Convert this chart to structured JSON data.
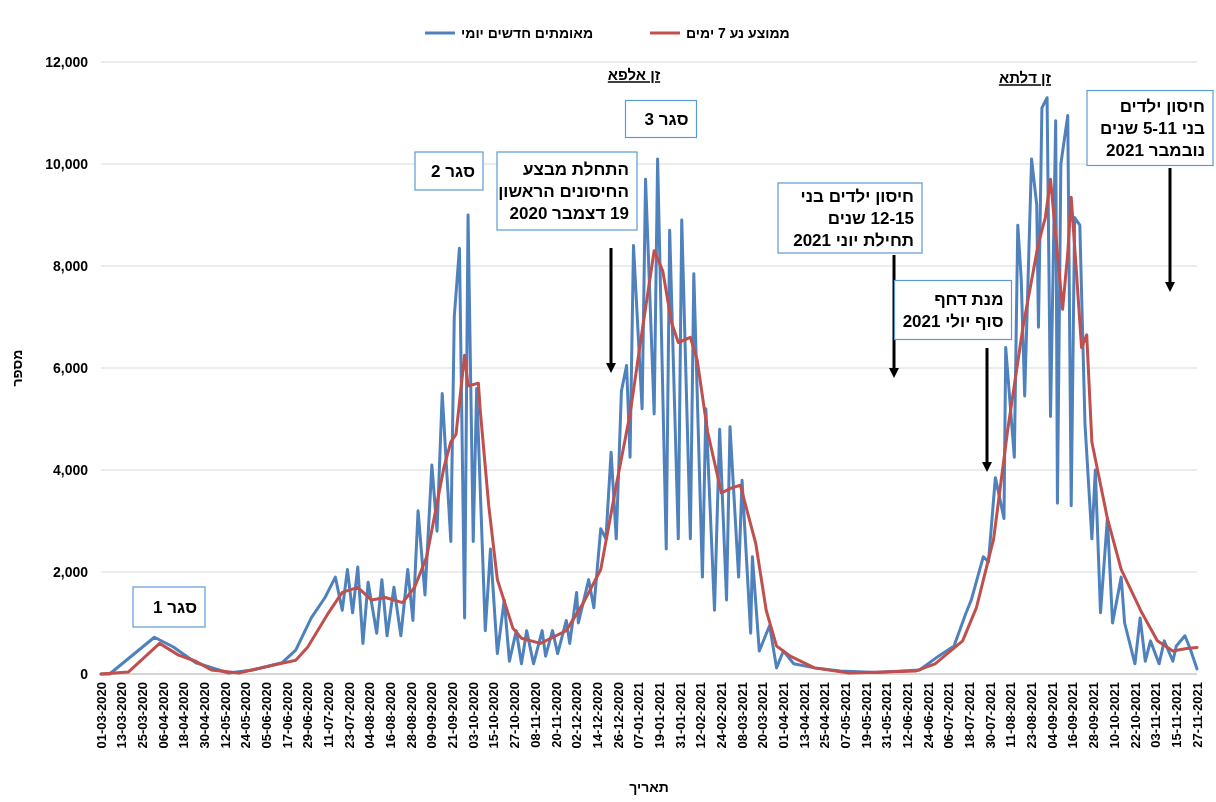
{
  "chart_data": {
    "type": "line",
    "xlabel": "תאריך",
    "ylabel": "מספר",
    "legend": "top",
    "grid": "y",
    "xlim": [
      "2020-03-01",
      "2021-11-27"
    ],
    "xticks": [
      {
        "value": "2020-03-01",
        "label": "01-03-2020"
      },
      {
        "value": "2020-03-13",
        "label": "13-03-2020"
      },
      {
        "value": "2020-03-25",
        "label": "25-03-2020"
      },
      {
        "value": "2020-04-06",
        "label": "06-04-2020"
      },
      {
        "value": "2020-04-18",
        "label": "18-04-2020"
      },
      {
        "value": "2020-04-30",
        "label": "30-04-2020"
      },
      {
        "value": "2020-05-12",
        "label": "12-05-2020"
      },
      {
        "value": "2020-05-24",
        "label": "24-05-2020"
      },
      {
        "value": "2020-06-05",
        "label": "05-06-2020"
      },
      {
        "value": "2020-06-17",
        "label": "17-06-2020"
      },
      {
        "value": "2020-06-29",
        "label": "29-06-2020"
      },
      {
        "value": "2020-07-11",
        "label": "11-07-2020"
      },
      {
        "value": "2020-07-23",
        "label": "23-07-2020"
      },
      {
        "value": "2020-08-04",
        "label": "04-08-2020"
      },
      {
        "value": "2020-08-16",
        "label": "16-08-2020"
      },
      {
        "value": "2020-08-28",
        "label": "28-08-2020"
      },
      {
        "value": "2020-09-09",
        "label": "09-09-2020"
      },
      {
        "value": "2020-09-21",
        "label": "21-09-2020"
      },
      {
        "value": "2020-10-03",
        "label": "03-10-2020"
      },
      {
        "value": "2020-10-15",
        "label": "15-10-2020"
      },
      {
        "value": "2020-10-27",
        "label": "27-10-2020"
      },
      {
        "value": "2020-11-08",
        "label": "08-11-2020"
      },
      {
        "value": "2020-11-20",
        "label": "20-11-2020"
      },
      {
        "value": "2020-12-02",
        "label": "02-12-2020"
      },
      {
        "value": "2020-12-14",
        "label": "14-12-2020"
      },
      {
        "value": "2020-12-26",
        "label": "26-12-2020"
      },
      {
        "value": "2021-01-07",
        "label": "07-01-2021"
      },
      {
        "value": "2021-01-19",
        "label": "19-01-2021"
      },
      {
        "value": "2021-01-31",
        "label": "31-01-2021"
      },
      {
        "value": "2021-02-12",
        "label": "12-02-2021"
      },
      {
        "value": "2021-02-24",
        "label": "24-02-2021"
      },
      {
        "value": "2021-03-08",
        "label": "08-03-2021"
      },
      {
        "value": "2021-03-20",
        "label": "20-03-2021"
      },
      {
        "value": "2021-04-01",
        "label": "01-04-2021"
      },
      {
        "value": "2021-04-13",
        "label": "13-04-2021"
      },
      {
        "value": "2021-04-25",
        "label": "25-04-2021"
      },
      {
        "value": "2021-05-07",
        "label": "07-05-2021"
      },
      {
        "value": "2021-05-19",
        "label": "19-05-2021"
      },
      {
        "value": "2021-05-31",
        "label": "31-05-2021"
      },
      {
        "value": "2021-06-12",
        "label": "12-06-2021"
      },
      {
        "value": "2021-06-24",
        "label": "24-06-2021"
      },
      {
        "value": "2021-07-06",
        "label": "06-07-2021"
      },
      {
        "value": "2021-07-18",
        "label": "18-07-2021"
      },
      {
        "value": "2021-07-30",
        "label": "30-07-2021"
      },
      {
        "value": "2021-08-11",
        "label": "11-08-2021"
      },
      {
        "value": "2021-08-23",
        "label": "23-08-2021"
      },
      {
        "value": "2021-09-04",
        "label": "04-09-2021"
      },
      {
        "value": "2021-09-16",
        "label": "16-09-2021"
      },
      {
        "value": "2021-09-28",
        "label": "28-09-2021"
      },
      {
        "value": "2021-10-10",
        "label": "10-10-2021"
      },
      {
        "value": "2021-10-22",
        "label": "22-10-2021"
      },
      {
        "value": "2021-11-03",
        "label": "03-11-2021"
      },
      {
        "value": "2021-11-15",
        "label": "15-11-2021"
      },
      {
        "value": "2021-11-27",
        "label": "27-11-2021"
      }
    ],
    "ylim": [
      0,
      12000
    ],
    "yticks": [
      0,
      {
        "value": 2000,
        "label": "2,000"
      },
      {
        "value": 4000,
        "label": "4,000"
      },
      {
        "value": 6000,
        "label": "6,000"
      },
      {
        "value": 8000,
        "label": "8,000"
      },
      {
        "value": 10000,
        "label": "10,000"
      },
      {
        "value": 12000,
        "label": "12,000"
      }
    ],
    "series": [
      {
        "name": "מאומתים חדשים יומי",
        "color": "#4f81bd",
        "x": [
          "2020-03-01",
          "2020-03-06",
          "2020-04-01",
          "2020-04-12",
          "2020-04-25",
          "2020-05-14",
          "2020-05-28",
          "2020-06-14",
          "2020-06-22",
          "2020-07-01",
          "2020-07-09",
          "2020-07-15",
          "2020-07-19",
          "2020-07-22",
          "2020-07-25",
          "2020-07-28",
          "2020-07-31",
          "2020-08-03",
          "2020-08-08",
          "2020-08-11",
          "2020-08-14",
          "2020-08-18",
          "2020-08-22",
          "2020-08-26",
          "2020-08-29",
          "2020-09-01",
          "2020-09-05",
          "2020-09-09",
          "2020-09-12",
          "2020-09-15",
          "2020-09-20",
          "2020-09-22",
          "2020-09-25",
          "2020-09-28",
          "2020-09-30",
          "2020-10-03",
          "2020-10-05",
          "2020-10-10",
          "2020-10-13",
          "2020-10-17",
          "2020-10-21",
          "2020-10-24",
          "2020-10-28",
          "2020-10-31",
          "2020-11-03",
          "2020-11-07",
          "2020-11-12",
          "2020-11-14",
          "2020-11-18",
          "2020-11-21",
          "2020-11-26",
          "2020-11-28",
          "2020-12-02",
          "2020-12-03",
          "2020-12-09",
          "2020-12-12",
          "2020-12-16",
          "2020-12-19",
          "2020-12-22",
          "2020-12-25",
          "2020-12-28",
          "2020-12-31",
          "2021-01-02",
          "2021-01-04",
          "2021-01-09",
          "2021-01-11",
          "2021-01-16",
          "2021-01-18",
          "2021-01-23",
          "2021-01-25",
          "2021-01-30",
          "2021-02-01",
          "2021-02-06",
          "2021-02-08",
          "2021-02-13",
          "2021-02-15",
          "2021-02-20",
          "2021-02-23",
          "2021-02-27",
          "2021-03-01",
          "2021-03-06",
          "2021-03-08",
          "2021-03-13",
          "2021-03-14",
          "2021-03-18",
          "2021-03-24",
          "2021-03-28",
          "2021-04-01",
          "2021-04-07",
          "2021-04-19",
          "2021-05-04",
          "2021-05-25",
          "2021-06-19",
          "2021-06-30",
          "2021-07-09",
          "2021-07-16",
          "2021-07-19",
          "2021-07-26",
          "2021-07-29",
          "2021-08-02",
          "2021-08-07",
          "2021-08-08",
          "2021-08-13",
          "2021-08-15",
          "2021-08-17",
          "2021-08-19",
          "2021-08-23",
          "2021-08-26",
          "2021-08-27",
          "2021-08-29",
          "2021-09-01",
          "2021-09-03",
          "2021-09-06",
          "2021-09-07",
          "2021-09-09",
          "2021-09-13",
          "2021-09-15",
          "2021-09-17",
          "2021-09-20",
          "2021-09-23",
          "2021-09-27",
          "2021-09-29",
          "2021-10-02",
          "2021-10-06",
          "2021-10-09",
          "2021-10-14",
          "2021-10-16",
          "2021-10-22",
          "2021-10-25",
          "2021-10-28",
          "2021-10-31",
          "2021-11-05",
          "2021-11-08",
          "2021-11-13",
          "2021-11-15",
          "2021-11-20",
          "2021-11-23",
          "2021-11-27"
        ],
        "values": [
          0,
          0,
          720,
          530,
          220,
          20,
          80,
          220,
          470,
          1100,
          1500,
          1900,
          1250,
          2050,
          1200,
          2100,
          600,
          1800,
          800,
          1850,
          750,
          1700,
          750,
          2050,
          1050,
          3200,
          1550,
          4100,
          2800,
          5500,
          2600,
          7000,
          8350,
          1100,
          9000,
          2600,
          5600,
          850,
          2450,
          400,
          1450,
          250,
          850,
          200,
          850,
          200,
          850,
          350,
          850,
          400,
          1050,
          600,
          1600,
          1000,
          1850,
          1300,
          2850,
          2650,
          4350,
          2650,
          5550,
          6050,
          4250,
          8400,
          5200,
          9700,
          5100,
          10100,
          2450,
          8700,
          2650,
          8900,
          2650,
          7850,
          1900,
          5200,
          1250,
          4800,
          1450,
          4850,
          1900,
          3800,
          800,
          2300,
          450,
          950,
          120,
          450,
          200,
          120,
          60,
          30,
          80,
          350,
          550,
          1200,
          1450,
          2300,
          2200,
          3850,
          3050,
          6400,
          4250,
          8800,
          7750,
          5450,
          10100,
          9200,
          6800,
          11100,
          11300,
          5050,
          10850,
          3350,
          10000,
          10950,
          3300,
          8950,
          8800,
          4900,
          2650,
          4000,
          1200,
          3050,
          1000,
          1900,
          1000,
          200,
          1100,
          250,
          650,
          200,
          650,
          250,
          550,
          750,
          500,
          100
        ]
      },
      {
        "name": "ממוצע נע 7 ימים",
        "color": "#c0504d",
        "x": [
          "2020-03-01",
          "2020-03-17",
          "2020-04-04",
          "2020-04-15",
          "2020-04-25",
          "2020-05-04",
          "2020-05-20",
          "2020-06-02",
          "2020-06-22",
          "2020-06-29",
          "2020-07-11",
          "2020-07-19",
          "2020-07-28",
          "2020-08-05",
          "2020-08-13",
          "2020-08-23",
          "2020-08-30",
          "2020-09-06",
          "2020-09-16",
          "2020-09-20",
          "2020-09-23",
          "2020-09-28",
          "2020-09-30",
          "2020-10-06",
          "2020-10-07",
          "2020-10-12",
          "2020-10-17",
          "2020-10-26",
          "2020-10-31",
          "2020-11-11",
          "2020-11-20",
          "2020-11-26",
          "2020-12-06",
          "2020-12-16",
          "2020-12-25",
          "2021-01-02",
          "2021-01-10",
          "2021-01-16",
          "2021-01-21",
          "2021-01-26",
          "2021-01-30",
          "2021-02-06",
          "2021-02-10",
          "2021-02-16",
          "2021-02-24",
          "2021-03-02",
          "2021-03-07",
          "2021-03-16",
          "2021-03-22",
          "2021-03-28",
          "2021-04-05",
          "2021-04-19",
          "2021-05-09",
          "2021-06-17",
          "2021-06-28",
          "2021-07-14",
          "2021-07-22",
          "2021-08-01",
          "2021-08-09",
          "2021-08-18",
          "2021-08-27",
          "2021-08-31",
          "2021-09-03",
          "2021-09-07",
          "2021-09-10",
          "2021-09-13",
          "2021-09-15",
          "2021-09-18",
          "2021-09-21",
          "2021-09-24",
          "2021-09-27",
          "2021-10-06",
          "2021-10-14",
          "2021-10-26",
          "2021-11-04",
          "2021-11-13",
          "2021-11-21",
          "2021-11-27"
        ],
        "values": [
          0,
          40,
          600,
          370,
          250,
          80,
          20,
          120,
          270,
          530,
          1200,
          1600,
          1700,
          1450,
          1500,
          1400,
          1700,
          2300,
          4050,
          4550,
          4700,
          6250,
          5650,
          5700,
          5200,
          3300,
          1850,
          900,
          700,
          600,
          750,
          850,
          1400,
          2050,
          3700,
          5100,
          6950,
          8300,
          7900,
          6900,
          6500,
          6600,
          6150,
          4750,
          3550,
          3650,
          3700,
          2550,
          1250,
          550,
          350,
          120,
          20,
          60,
          200,
          650,
          1300,
          2650,
          4750,
          6800,
          8450,
          8950,
          9700,
          8250,
          7150,
          8250,
          9350,
          7900,
          6400,
          6650,
          4550,
          3050,
          2050,
          1200,
          650,
          450,
          500,
          520
        ]
      }
    ],
    "annotations": [
      "סגר 1",
      "סגר 2",
      "סגר 3",
      "זן אלפא",
      "זן דלתא",
      "התחלת מבצע\nהחיסונים הראשון\n19 דצמבר 2020",
      "חיסון ילדים בני\n12-15 שנים\nתחילת יוני 2021",
      "מנת דחף\nסוף יולי 2021",
      "חיסון ילדים\nבני 5-11 שנים\nנובמבר  2021"
    ]
  }
}
